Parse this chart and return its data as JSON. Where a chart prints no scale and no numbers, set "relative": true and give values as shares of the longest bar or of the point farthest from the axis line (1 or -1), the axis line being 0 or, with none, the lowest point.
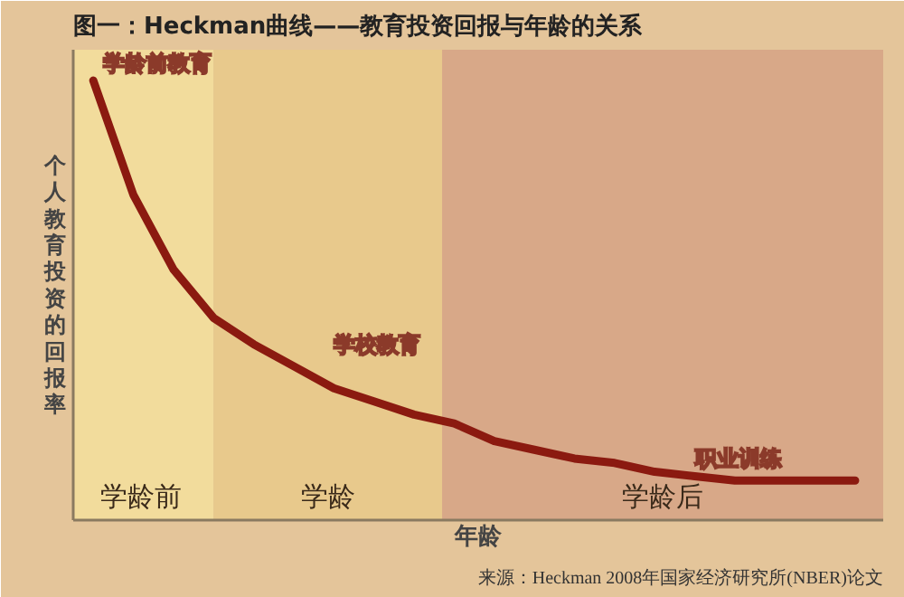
{
  "chart_data": {
    "type": "line",
    "title": "图一：Heckman曲线——教育投资回报与年龄的关系",
    "xlabel": "年龄",
    "ylabel": "个人教育投资的回报率",
    "relative": true,
    "marker": "none",
    "line_style": "solid",
    "categories": [
      null,
      null,
      null,
      null,
      null,
      null,
      null,
      null,
      null,
      null,
      null,
      null,
      null,
      null,
      null,
      null,
      null,
      null,
      null,
      null
    ],
    "series": [
      {
        "color": "#8b1a10",
        "values": [
          1,
          0.74,
          0.57,
          0.46,
          0.4,
          0.35,
          0.3,
          0.27,
          0.24,
          0.22,
          0.18,
          0.16,
          0.14,
          0.13,
          0.11,
          0.1,
          0.09,
          0.09,
          0.09,
          0.09
        ]
      }
    ],
    "annotations": [
      "学龄前教育",
      "学校教育",
      "职业训练",
      "学龄前",
      "学龄",
      "学龄后",
      "来源：Heckman 2008年国家经济研究所(NBER)论文"
    ]
  }
}
